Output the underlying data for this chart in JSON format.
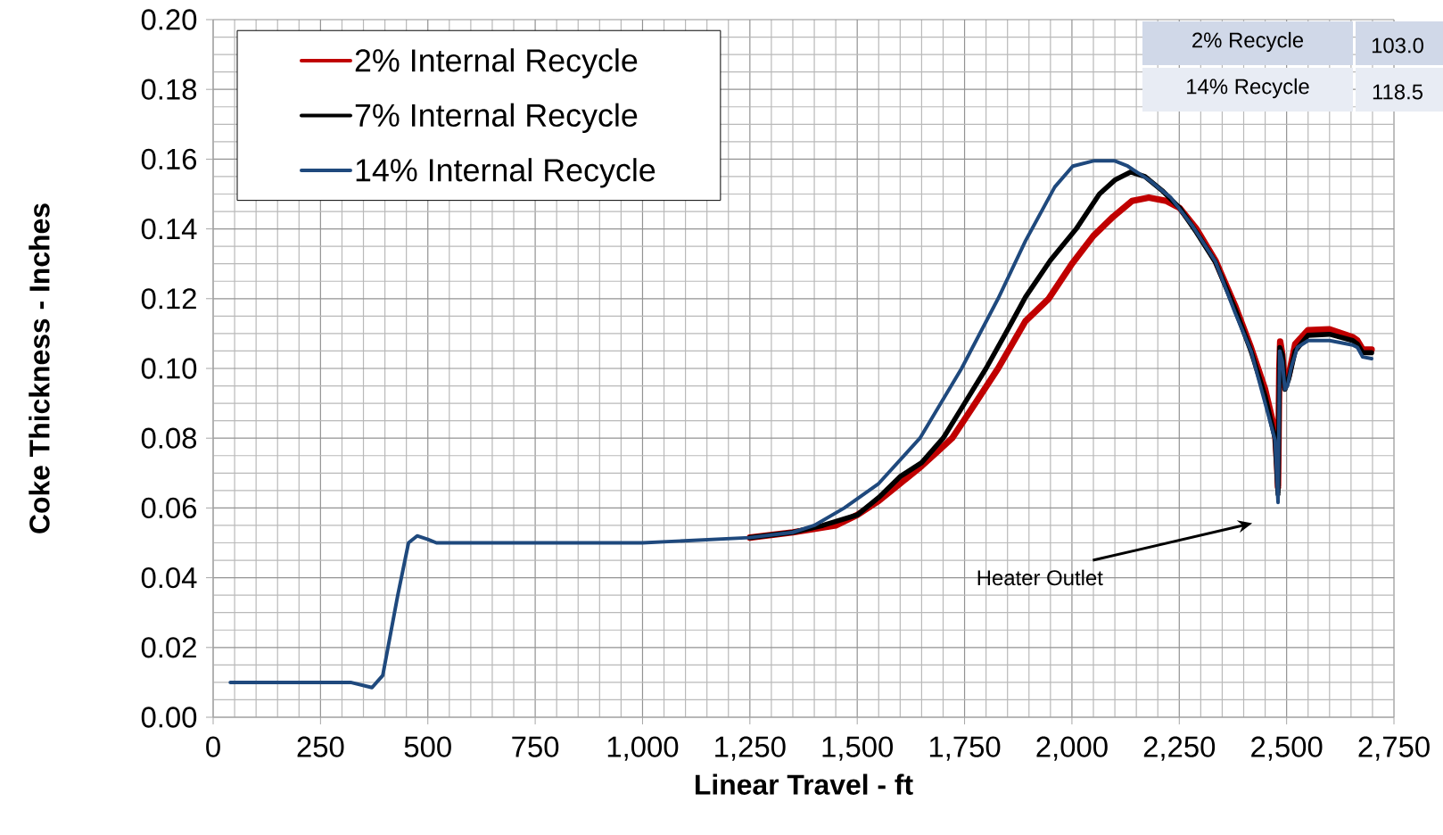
{
  "chart_data": {
    "type": "line",
    "xlabel": "Linear Travel - ft",
    "ylabel": "Coke Thickness - Inches",
    "xlim": [
      0,
      2750
    ],
    "ylim": [
      0,
      0.2
    ],
    "xticks": [
      0,
      250,
      500,
      750,
      {
        "value": 1000,
        "label": "1,000"
      },
      {
        "value": 1250,
        "label": "1,250"
      },
      {
        "value": 1500,
        "label": "1,500"
      },
      {
        "value": 1750,
        "label": "1,750"
      },
      {
        "value": 2000,
        "label": "2,000"
      },
      {
        "value": 2250,
        "label": "2,250"
      },
      {
        "value": 2500,
        "label": "2,500"
      },
      {
        "value": 2750,
        "label": "2,750"
      }
    ],
    "yticks": [
      {
        "value": 0,
        "label": "0.00"
      },
      {
        "value": 0.02,
        "label": "0.02"
      },
      {
        "value": 0.04,
        "label": "0.04"
      },
      {
        "value": 0.06,
        "label": "0.06"
      },
      {
        "value": 0.08,
        "label": "0.08"
      },
      {
        "value": 0.1,
        "label": "0.10"
      },
      {
        "value": 0.12,
        "label": "0.12"
      },
      {
        "value": 0.14,
        "label": "0.14"
      },
      {
        "value": 0.16,
        "label": "0.16"
      },
      {
        "value": 0.18,
        "label": "0.18"
      },
      {
        "value": 0.2,
        "label": "0.20"
      }
    ],
    "grid": true,
    "legend": "top left",
    "line_style": "solid",
    "series": [
      {
        "name": "2% Internal Recycle",
        "color": "#c00000",
        "x": [
          1250,
          1350,
          1450,
          1500,
          1550,
          1600,
          1650,
          1721,
          1775,
          1828,
          1892,
          1946,
          2000,
          2050,
          2096,
          2140,
          2179,
          2220,
          2251,
          2290,
          2334,
          2380,
          2417,
          2450,
          2473,
          2478,
          2480,
          2483,
          2485,
          2490,
          2496,
          2505,
          2520,
          2550,
          2600,
          2654,
          2665,
          2677,
          2698
        ],
        "values": [
          0.0515,
          0.053,
          0.055,
          0.058,
          0.062,
          0.067,
          0.072,
          0.08,
          0.09,
          0.1,
          0.1136,
          0.12,
          0.13,
          0.138,
          0.1435,
          0.148,
          0.149,
          0.148,
          0.146,
          0.14,
          0.131,
          0.118,
          0.106,
          0.094,
          0.082,
          0.072,
          0.066,
          0.1,
          0.1077,
          0.104,
          0.095,
          0.098,
          0.107,
          0.111,
          0.1112,
          0.109,
          0.108,
          0.1055,
          0.1054
        ]
      },
      {
        "name": "7% Internal Recycle",
        "color": "#000000",
        "x": [
          1250,
          1350,
          1420,
          1500,
          1550,
          1600,
          1650,
          1700,
          1750,
          1800,
          1850,
          1892,
          1950,
          2010,
          2064,
          2100,
          2137,
          2170,
          2210,
          2251,
          2290,
          2334,
          2380,
          2417,
          2450,
          2473,
          2480,
          2484,
          2490,
          2496,
          2505,
          2520,
          2550,
          2600,
          2654,
          2665,
          2677,
          2698
        ],
        "values": [
          0.0515,
          0.053,
          0.055,
          0.058,
          0.063,
          0.069,
          0.073,
          0.08,
          0.09,
          0.1,
          0.111,
          0.1205,
          0.131,
          0.14,
          0.15,
          0.154,
          0.1563,
          0.155,
          0.151,
          0.146,
          0.139,
          0.1305,
          0.117,
          0.105,
          0.092,
          0.08,
          0.064,
          0.106,
          0.104,
          0.094,
          0.097,
          0.105,
          0.1095,
          0.1098,
          0.108,
          0.107,
          0.1045,
          0.1045
        ]
      },
      {
        "name": "14% Internal Recycle",
        "color": "#1f497d",
        "x": [
          40,
          320,
          370,
          395,
          430,
          455,
          475,
          500,
          520,
          1000,
          1250,
          1350,
          1400,
          1470,
          1550,
          1646,
          1743,
          1828,
          1892,
          1960,
          2002,
          2050,
          2100,
          2130,
          2180,
          2230,
          2280,
          2334,
          2380,
          2417,
          2450,
          2473,
          2480,
          2484,
          2490,
          2496,
          2502,
          2510,
          2525,
          2550,
          2600,
          2654,
          2665,
          2677,
          2698
        ],
        "values": [
          0.01,
          0.01,
          0.0085,
          0.012,
          0.035,
          0.05,
          0.052,
          0.051,
          0.05,
          0.05,
          0.0515,
          0.053,
          0.055,
          0.06,
          0.067,
          0.08,
          0.1,
          0.12,
          0.1366,
          0.152,
          0.158,
          0.1595,
          0.1595,
          0.158,
          0.154,
          0.149,
          0.141,
          0.1307,
          0.116,
          0.105,
          0.09,
          0.0795,
          0.0616,
          0.105,
          0.102,
          0.094,
          0.095,
          0.1,
          0.106,
          0.108,
          0.108,
          0.1067,
          0.106,
          0.1033,
          0.1028
        ]
      }
    ],
    "annotations": [
      "Heater Outlet",
      "2% Recycle",
      "103.0",
      "14% Recycle",
      "118.5"
    ]
  }
}
